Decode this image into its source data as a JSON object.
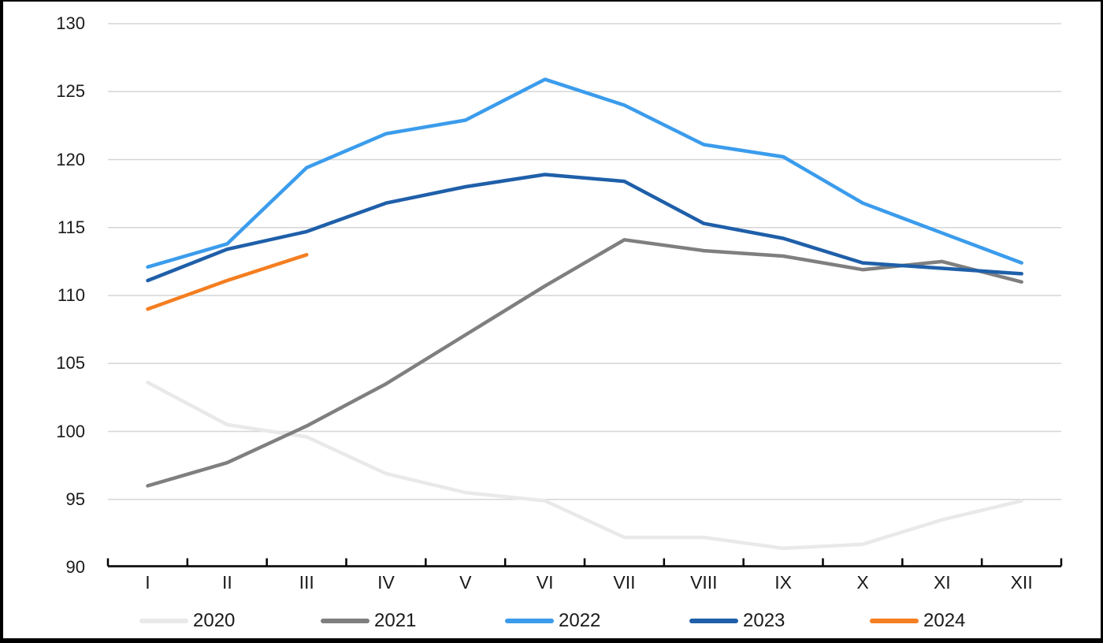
{
  "page": {
    "background": "#ffffff",
    "frame_color": "#000000",
    "gridline_color": "#d6d6d6",
    "axis_color": "#000000",
    "text_color": "#1a1a1a"
  },
  "chart_data": {
    "type": "line",
    "title": "",
    "xlabel": "",
    "ylabel": "",
    "grid": true,
    "legend_position": "bottom",
    "ylim": [
      90,
      130
    ],
    "ytick_step": 5,
    "ytick_labels": [
      "90",
      "95",
      "100",
      "105",
      "110",
      "115",
      "120",
      "125",
      "130"
    ],
    "categories": [
      "I",
      "II",
      "III",
      "IV",
      "V",
      "VI",
      "VII",
      "VIII",
      "IX",
      "X",
      "XI",
      "XII"
    ],
    "series": [
      {
        "name": "2020",
        "color": "#e9e9e9",
        "values": [
          103.6,
          100.5,
          99.6,
          96.9,
          95.5,
          94.9,
          92.2,
          92.2,
          91.4,
          91.7,
          93.5,
          94.9
        ]
      },
      {
        "name": "2021",
        "color": "#7f7f7f",
        "values": [
          96.0,
          97.7,
          100.4,
          103.5,
          107.1,
          110.7,
          114.1,
          113.3,
          112.9,
          111.9,
          112.5,
          111.0
        ]
      },
      {
        "name": "2022",
        "color": "#3b9cec",
        "values": [
          112.1,
          113.8,
          119.4,
          121.9,
          122.9,
          125.9,
          124.0,
          121.1,
          120.2,
          116.8,
          114.6,
          112.4
        ]
      },
      {
        "name": "2023",
        "color": "#1f5fa9",
        "values": [
          111.1,
          113.4,
          114.7,
          116.8,
          118.0,
          118.9,
          118.4,
          115.3,
          114.2,
          112.4,
          112.0,
          111.6
        ]
      },
      {
        "name": "2024",
        "color": "#f57e20",
        "values": [
          109.0,
          111.1,
          113.0
        ]
      }
    ]
  }
}
